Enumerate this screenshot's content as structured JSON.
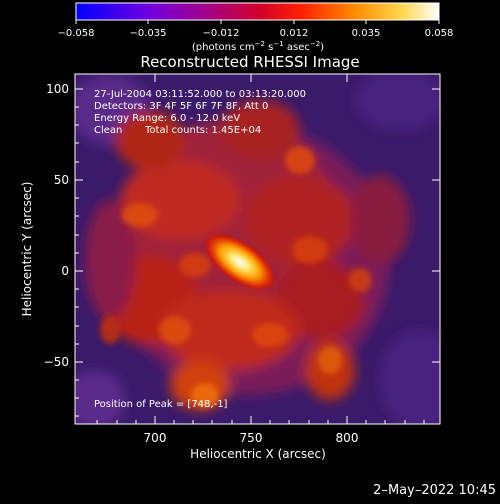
{
  "colorbar": {
    "ticks": [
      "−0.058",
      "−0.035",
      "−0.012",
      "0.012",
      "0.035",
      "0.058"
    ],
    "units_prefix": "(photons cm",
    "units_exp1": "−2",
    "units_mid": " s",
    "units_exp2": "−1",
    "units_mid2": " asec",
    "units_exp3": "−2",
    "units_suffix": ")",
    "colors": [
      "#0000ff",
      "#6a00e0",
      "#a000a0",
      "#d00040",
      "#ff2a00",
      "#ff8a00",
      "#ffd040",
      "#ffffff"
    ]
  },
  "image": {
    "title": "Reconstructed RHESSI Image",
    "info_lines": [
      "27-Jul-2004 03:11:52.000 to 03:13:20.000",
      "Detectors: 3F 4F 5F 6F 7F 8F, Att 0",
      "Energy Range: 6.0 - 12.0 keV"
    ],
    "clean_label": "Clean",
    "total_counts": "Total counts: 1.45E+04",
    "peak_label": "Position of Peak = [748,-1]",
    "xlabel": "Heliocentric X (arcsec)",
    "ylabel": "Heliocentric Y (arcsec)",
    "xticks": [
      "700",
      "750",
      "800"
    ],
    "yticks": [
      "100",
      "50",
      "0",
      "−50"
    ],
    "peak_value": {
      "x": 748,
      "y": -1
    },
    "x_range": [
      652,
      842
    ],
    "y_range": [
      -84,
      106
    ]
  },
  "footer": {
    "date": "2–May–2022 10:45"
  }
}
